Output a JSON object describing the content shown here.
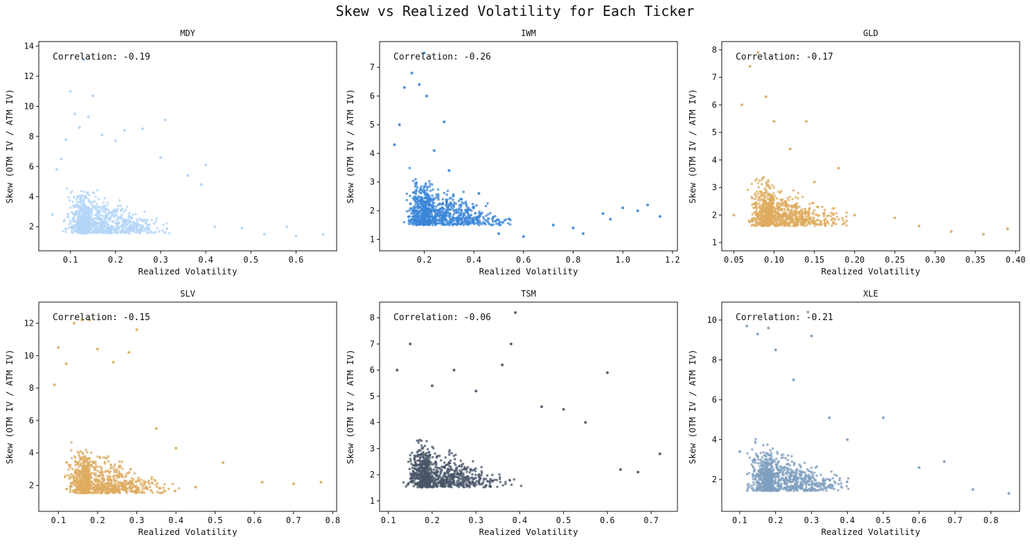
{
  "figure": {
    "title": "Skew vs Realized Volatility for Each Ticker"
  },
  "chart_data": [
    {
      "type": "scatter",
      "title": "MDY",
      "xlabel": "Realized Volatility",
      "ylabel": "Skew (OTM IV / ATM IV)",
      "annotation": "Correlation: -0.19",
      "color": "#b3d4f7",
      "xlim": [
        0.03,
        0.69
      ],
      "ylim": [
        0.4,
        14.3
      ],
      "xticks": [
        0.1,
        0.2,
        0.3,
        0.4,
        0.5,
        0.6
      ],
      "xtick_labels": [
        "0.1",
        "0.2",
        "0.3",
        "0.4",
        "0.5",
        "0.6"
      ],
      "yticks": [
        2,
        4,
        6,
        8,
        10,
        12,
        14
      ],
      "ytick_labels": [
        "2",
        "4",
        "6",
        "8",
        "10",
        "12",
        "14"
      ],
      "series": [
        {
          "points": [
            [
              0.06,
              2.8
            ],
            [
              0.07,
              5.8
            ],
            [
              0.08,
              6.5
            ],
            [
              0.09,
              7.8
            ],
            [
              0.1,
              11.0
            ],
            [
              0.11,
              9.5
            ],
            [
              0.12,
              8.6
            ],
            [
              0.13,
              13.1
            ],
            [
              0.14,
              9.3
            ],
            [
              0.15,
              10.7
            ],
            [
              0.17,
              8.1
            ],
            [
              0.2,
              7.7
            ],
            [
              0.22,
              8.4
            ],
            [
              0.26,
              8.5
            ],
            [
              0.31,
              9.1
            ],
            [
              0.3,
              6.6
            ],
            [
              0.36,
              5.4
            ],
            [
              0.4,
              6.1
            ],
            [
              0.39,
              4.8
            ],
            [
              0.42,
              2.0
            ],
            [
              0.48,
              1.9
            ],
            [
              0.53,
              1.5
            ],
            [
              0.58,
              2.0
            ],
            [
              0.6,
              1.4
            ],
            [
              0.66,
              1.5
            ]
          ]
        }
      ]
    },
    {
      "type": "scatter",
      "title": "IWM",
      "xlabel": "Realized Volatility",
      "ylabel": "Skew (OTM IV / ATM IV)",
      "annotation": "Correlation: -0.26",
      "color": "#3a86d8",
      "xlim": [
        0.02,
        1.22
      ],
      "ylim": [
        0.6,
        7.9
      ],
      "xticks": [
        0.2,
        0.4,
        0.6,
        0.8,
        1.0,
        1.2
      ],
      "xtick_labels": [
        "0.2",
        "0.4",
        "0.6",
        "0.8",
        "1.0",
        "1.2"
      ],
      "yticks": [
        1,
        2,
        3,
        4,
        5,
        6,
        7
      ],
      "ytick_labels": [
        "1",
        "2",
        "3",
        "4",
        "5",
        "6",
        "7"
      ],
      "series": [
        {
          "points": [
            [
              0.08,
              4.3
            ],
            [
              0.1,
              5.0
            ],
            [
              0.12,
              6.3
            ],
            [
              0.15,
              6.8
            ],
            [
              0.18,
              6.4
            ],
            [
              0.2,
              7.5
            ],
            [
              0.21,
              6.0
            ],
            [
              0.24,
              4.1
            ],
            [
              0.28,
              5.1
            ],
            [
              0.3,
              3.4
            ],
            [
              0.35,
              2.4
            ],
            [
              0.42,
              2.6
            ],
            [
              0.5,
              1.2
            ],
            [
              0.6,
              1.1
            ],
            [
              0.72,
              1.5
            ],
            [
              0.8,
              1.4
            ],
            [
              0.84,
              1.2
            ],
            [
              0.92,
              1.9
            ],
            [
              0.95,
              1.7
            ],
            [
              1.0,
              2.1
            ],
            [
              1.06,
              2.0
            ],
            [
              1.1,
              2.2
            ],
            [
              1.15,
              1.8
            ]
          ]
        }
      ]
    },
    {
      "type": "scatter",
      "title": "GLD",
      "xlabel": "Realized Volatility",
      "ylabel": "Skew (OTM IV / ATM IV)",
      "annotation": "Correlation: -0.17",
      "color": "#ddab5f",
      "xlim": [
        0.035,
        0.405
      ],
      "ylim": [
        0.7,
        8.3
      ],
      "xticks": [
        0.05,
        0.1,
        0.15,
        0.2,
        0.25,
        0.3,
        0.35,
        0.4
      ],
      "xtick_labels": [
        "0.05",
        "0.10",
        "0.15",
        "0.20",
        "0.25",
        "0.30",
        "0.35",
        "0.40"
      ],
      "yticks": [
        1,
        2,
        3,
        4,
        5,
        6,
        7,
        8
      ],
      "ytick_labels": [
        "1",
        "2",
        "3",
        "4",
        "5",
        "6",
        "7",
        "8"
      ],
      "series": [
        {
          "points": [
            [
              0.05,
              2.0
            ],
            [
              0.06,
              6.0
            ],
            [
              0.07,
              7.4
            ],
            [
              0.08,
              7.9
            ],
            [
              0.09,
              6.3
            ],
            [
              0.1,
              5.4
            ],
            [
              0.12,
              4.4
            ],
            [
              0.14,
              5.4
            ],
            [
              0.15,
              3.2
            ],
            [
              0.18,
              3.7
            ],
            [
              0.2,
              2.0
            ],
            [
              0.25,
              1.9
            ],
            [
              0.28,
              1.6
            ],
            [
              0.32,
              1.4
            ],
            [
              0.36,
              1.3
            ],
            [
              0.39,
              1.5
            ]
          ]
        }
      ]
    },
    {
      "type": "scatter",
      "title": "SLV",
      "xlabel": "Realized Volatility",
      "ylabel": "Skew (OTM IV / ATM IV)",
      "annotation": "Correlation: -0.15",
      "color": "#ddab5f",
      "xlim": [
        0.05,
        0.81
      ],
      "ylim": [
        0.4,
        13.3
      ],
      "xticks": [
        0.1,
        0.2,
        0.3,
        0.4,
        0.5,
        0.6,
        0.7,
        0.8
      ],
      "xtick_labels": [
        "0.1",
        "0.2",
        "0.3",
        "0.4",
        "0.5",
        "0.6",
        "0.7",
        "0.8"
      ],
      "yticks": [
        2,
        4,
        6,
        8,
        10,
        12
      ],
      "ytick_labels": [
        "2",
        "4",
        "6",
        "8",
        "10",
        "12"
      ],
      "series": [
        {
          "points": [
            [
              0.09,
              8.2
            ],
            [
              0.1,
              10.5
            ],
            [
              0.12,
              9.5
            ],
            [
              0.14,
              12.0
            ],
            [
              0.16,
              12.2
            ],
            [
              0.18,
              12.2
            ],
            [
              0.2,
              10.4
            ],
            [
              0.24,
              9.6
            ],
            [
              0.28,
              10.2
            ],
            [
              0.3,
              11.6
            ],
            [
              0.35,
              5.5
            ],
            [
              0.4,
              4.3
            ],
            [
              0.45,
              1.9
            ],
            [
              0.52,
              3.4
            ],
            [
              0.62,
              2.2
            ],
            [
              0.7,
              2.1
            ],
            [
              0.77,
              2.2
            ]
          ]
        }
      ]
    },
    {
      "type": "scatter",
      "title": "TSM",
      "xlabel": "Realized Volatility",
      "ylabel": "Skew (OTM IV / ATM IV)",
      "annotation": "Correlation: -0.06",
      "color": "#4a5568",
      "xlim": [
        0.08,
        0.76
      ],
      "ylim": [
        0.6,
        8.6
      ],
      "xticks": [
        0.1,
        0.2,
        0.3,
        0.4,
        0.5,
        0.6,
        0.7
      ],
      "xtick_labels": [
        "0.1",
        "0.2",
        "0.3",
        "0.4",
        "0.5",
        "0.6",
        "0.7"
      ],
      "yticks": [
        1,
        2,
        3,
        4,
        5,
        6,
        7,
        8
      ],
      "ytick_labels": [
        "1",
        "2",
        "3",
        "4",
        "5",
        "6",
        "7",
        "8"
      ],
      "series": [
        {
          "points": [
            [
              0.12,
              6.0
            ],
            [
              0.15,
              7.0
            ],
            [
              0.2,
              5.4
            ],
            [
              0.25,
              6.0
            ],
            [
              0.3,
              5.2
            ],
            [
              0.36,
              6.2
            ],
            [
              0.39,
              8.2
            ],
            [
              0.38,
              7.0
            ],
            [
              0.45,
              4.6
            ],
            [
              0.5,
              4.5
            ],
            [
              0.55,
              4.0
            ],
            [
              0.6,
              5.9
            ],
            [
              0.63,
              2.2
            ],
            [
              0.67,
              2.1
            ],
            [
              0.72,
              2.8
            ]
          ]
        }
      ]
    },
    {
      "type": "scatter",
      "title": "XLE",
      "xlabel": "Realized Volatility",
      "ylabel": "Skew (OTM IV / ATM IV)",
      "annotation": "Correlation: -0.21",
      "color": "#7f9fbf",
      "xlim": [
        0.05,
        0.88
      ],
      "ylim": [
        0.4,
        10.9
      ],
      "xticks": [
        0.1,
        0.2,
        0.3,
        0.4,
        0.5,
        0.6,
        0.7,
        0.8
      ],
      "xtick_labels": [
        "0.1",
        "0.2",
        "0.3",
        "0.4",
        "0.5",
        "0.6",
        "0.7",
        "0.8"
      ],
      "yticks": [
        2,
        4,
        6,
        8,
        10
      ],
      "ytick_labels": [
        "2",
        "4",
        "6",
        "8",
        "10"
      ],
      "series": [
        {
          "points": [
            [
              0.1,
              3.4
            ],
            [
              0.12,
              9.7
            ],
            [
              0.15,
              9.3
            ],
            [
              0.18,
              9.6
            ],
            [
              0.2,
              8.5
            ],
            [
              0.25,
              7.0
            ],
            [
              0.29,
              10.4
            ],
            [
              0.3,
              9.2
            ],
            [
              0.35,
              5.1
            ],
            [
              0.4,
              4.0
            ],
            [
              0.5,
              5.1
            ],
            [
              0.6,
              2.6
            ],
            [
              0.67,
              2.9
            ],
            [
              0.75,
              1.5
            ],
            [
              0.85,
              1.3
            ]
          ]
        }
      ]
    }
  ]
}
